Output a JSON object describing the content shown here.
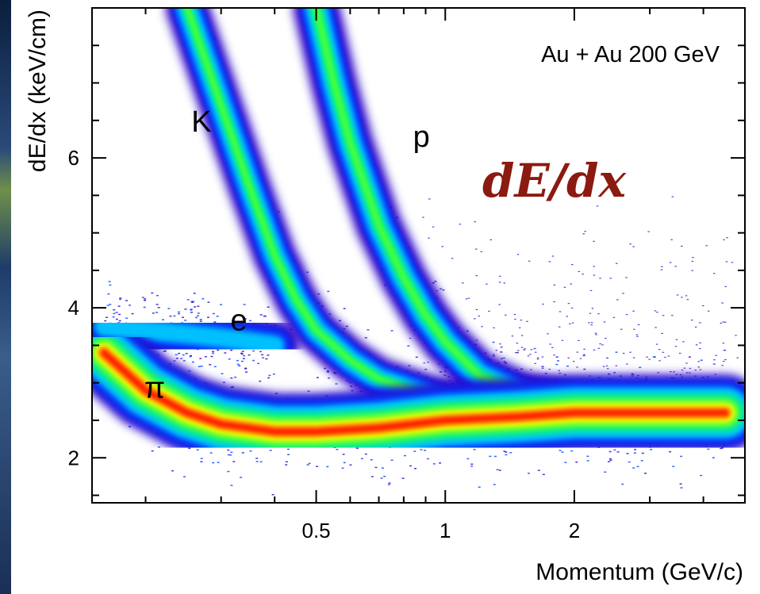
{
  "chart_data": {
    "type": "scatter",
    "subtitle": "Au + Au 200 GeV",
    "xlabel": "Momentum (GeV/c)",
    "ylabel": "dE/dx (keV/cm)",
    "x_scale": "log",
    "xlim": [
      0.15,
      5.0
    ],
    "ylim": [
      1.4,
      8.0
    ],
    "x_ticks": [
      0.5,
      1,
      2
    ],
    "x_tick_labels": [
      "0.5",
      "1",
      "2"
    ],
    "y_ticks": [
      2,
      4,
      6
    ],
    "y_tick_labels": [
      "2",
      "4",
      "6"
    ],
    "overlay_label": "dE/dx",
    "band_labels": [
      {
        "name": "K",
        "x": 0.27,
        "y": 6.35
      },
      {
        "name": "p",
        "x": 0.88,
        "y": 6.15
      },
      {
        "name": "e",
        "x": 0.33,
        "y": 3.7
      },
      {
        "name": "π",
        "x": 0.21,
        "y": 2.8
      }
    ],
    "series": [
      {
        "name": "π",
        "points": [
          [
            0.16,
            3.4
          ],
          [
            0.2,
            2.9
          ],
          [
            0.25,
            2.6
          ],
          [
            0.3,
            2.45
          ],
          [
            0.4,
            2.35
          ],
          [
            0.5,
            2.35
          ],
          [
            0.7,
            2.4
          ],
          [
            1.0,
            2.5
          ],
          [
            1.5,
            2.55
          ],
          [
            2.0,
            2.6
          ],
          [
            3.0,
            2.6
          ],
          [
            4.5,
            2.6
          ]
        ]
      },
      {
        "name": "K",
        "points": [
          [
            0.25,
            8.0
          ],
          [
            0.3,
            6.7
          ],
          [
            0.35,
            5.6
          ],
          [
            0.4,
            4.7
          ],
          [
            0.45,
            4.1
          ],
          [
            0.5,
            3.7
          ],
          [
            0.6,
            3.3
          ],
          [
            0.7,
            3.05
          ],
          [
            1.0,
            2.75
          ],
          [
            1.5,
            2.6
          ]
        ]
      },
      {
        "name": "p",
        "points": [
          [
            0.5,
            8.0
          ],
          [
            0.55,
            7.0
          ],
          [
            0.6,
            6.2
          ],
          [
            0.7,
            5.1
          ],
          [
            0.8,
            4.4
          ],
          [
            0.9,
            3.9
          ],
          [
            1.0,
            3.55
          ],
          [
            1.2,
            3.1
          ],
          [
            1.5,
            2.85
          ],
          [
            2.0,
            2.7
          ],
          [
            3.0,
            2.6
          ]
        ]
      },
      {
        "name": "e",
        "points": [
          [
            0.16,
            3.75
          ],
          [
            0.2,
            3.7
          ],
          [
            0.25,
            3.65
          ],
          [
            0.3,
            3.6
          ],
          [
            0.35,
            3.55
          ],
          [
            0.4,
            3.5
          ]
        ]
      }
    ],
    "colorscale": [
      "#2a00c8",
      "#0040ff",
      "#00c0ff",
      "#00e8a0",
      "#40ff40",
      "#f0ff00",
      "#ff9a00",
      "#ff2000"
    ],
    "grid": false
  }
}
